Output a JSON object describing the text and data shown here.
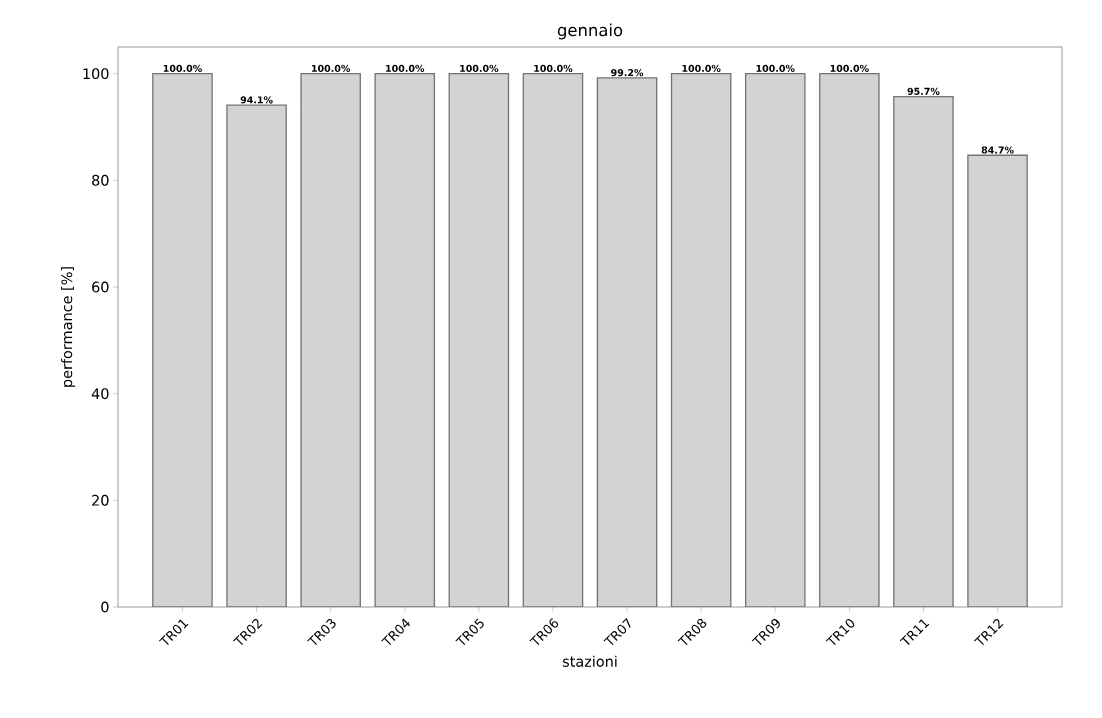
{
  "chart_data": {
    "type": "bar",
    "title": "gennaio",
    "xlabel": "stazioni",
    "ylabel": "performance [%]",
    "categories": [
      "TR01",
      "TR02",
      "TR03",
      "TR04",
      "TR05",
      "TR06",
      "TR07",
      "TR08",
      "TR09",
      "TR10",
      "TR11",
      "TR12"
    ],
    "values": [
      100,
      94.1,
      100,
      100,
      100,
      100,
      99.2,
      100,
      100,
      100,
      95.7,
      84.7
    ],
    "value_labels": [
      "100.0%",
      "94.1%",
      "100.0%",
      "100.0%",
      "100.0%",
      "100.0%",
      "99.2%",
      "100.0%",
      "100.0%",
      "100.0%",
      "95.7%",
      "84.7%"
    ],
    "color": "#d3d3d3",
    "ylim": [
      0,
      105
    ],
    "yticks": [
      0,
      20,
      40,
      60,
      80,
      100
    ],
    "grid": false
  }
}
